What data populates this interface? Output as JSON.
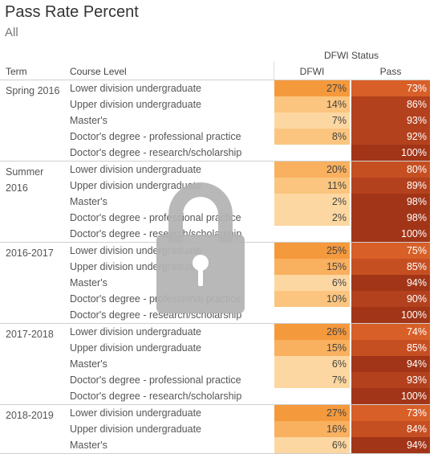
{
  "header": {
    "title": "Pass Rate Percent",
    "subtitle": "All"
  },
  "table": {
    "status_header": "DFWI Status",
    "columns": {
      "term": "Term",
      "level": "Course Level",
      "dfwi": "DFWI",
      "pass": "Pass"
    },
    "groups": [
      {
        "term": "Spring 2016",
        "rows": [
          {
            "level": "Lower division undergraduate",
            "dfwi": "27%",
            "pass": "73%"
          },
          {
            "level": "Upper division undergraduate",
            "dfwi": "14%",
            "pass": "86%"
          },
          {
            "level": "Master's",
            "dfwi": "7%",
            "pass": "93%"
          },
          {
            "level": "Doctor's degree - professional practice",
            "dfwi": "8%",
            "pass": "92%"
          },
          {
            "level": "Doctor's degree - research/scholarship",
            "dfwi": "",
            "pass": "100%"
          }
        ]
      },
      {
        "term": "Summer 2016",
        "rows": [
          {
            "level": "Lower division undergraduate",
            "dfwi": "20%",
            "pass": "80%"
          },
          {
            "level": "Upper division undergraduate",
            "dfwi": "11%",
            "pass": "89%"
          },
          {
            "level": "Master's",
            "dfwi": "2%",
            "pass": "98%"
          },
          {
            "level": "Doctor's degree - professional practice",
            "dfwi": "2%",
            "pass": "98%"
          },
          {
            "level": "Doctor's degree - research/scholarship",
            "dfwi": "",
            "pass": "100%"
          }
        ]
      },
      {
        "term": "2016-2017",
        "rows": [
          {
            "level": "Lower division undergraduate",
            "dfwi": "25%",
            "pass": "75%"
          },
          {
            "level": "Upper division undergraduate",
            "dfwi": "15%",
            "pass": "85%"
          },
          {
            "level": "Master's",
            "dfwi": "6%",
            "pass": "94%"
          },
          {
            "level": "Doctor's degree - professional practice",
            "dfwi": "10%",
            "pass": "90%"
          },
          {
            "level": "Doctor's degree - research/scholarship",
            "dfwi": "",
            "pass": "100%"
          }
        ]
      },
      {
        "term": "2017-2018",
        "rows": [
          {
            "level": "Lower division undergraduate",
            "dfwi": "26%",
            "pass": "74%"
          },
          {
            "level": "Upper division undergraduate",
            "dfwi": "15%",
            "pass": "85%"
          },
          {
            "level": "Master's",
            "dfwi": "6%",
            "pass": "94%"
          },
          {
            "level": "Doctor's degree - professional practice",
            "dfwi": "7%",
            "pass": "93%"
          },
          {
            "level": "Doctor's degree - research/scholarship",
            "dfwi": "",
            "pass": "100%"
          }
        ]
      },
      {
        "term": "2018-2019",
        "rows": [
          {
            "level": "Lower division undergraduate",
            "dfwi": "27%",
            "pass": "73%"
          },
          {
            "level": "Upper division undergraduate",
            "dfwi": "16%",
            "pass": "84%"
          },
          {
            "level": "Master's",
            "dfwi": "6%",
            "pass": "94%"
          }
        ]
      }
    ]
  },
  "overlay": {
    "icon": "lock-icon",
    "color": "#b3b3b3"
  },
  "colors": {
    "dfwi_scale": [
      "#fdd7a1",
      "#fbc57f",
      "#f9b05f",
      "#f5993d"
    ],
    "pass_scale": [
      "#d85f28",
      "#c64f22",
      "#b4411d",
      "#a23517"
    ]
  }
}
